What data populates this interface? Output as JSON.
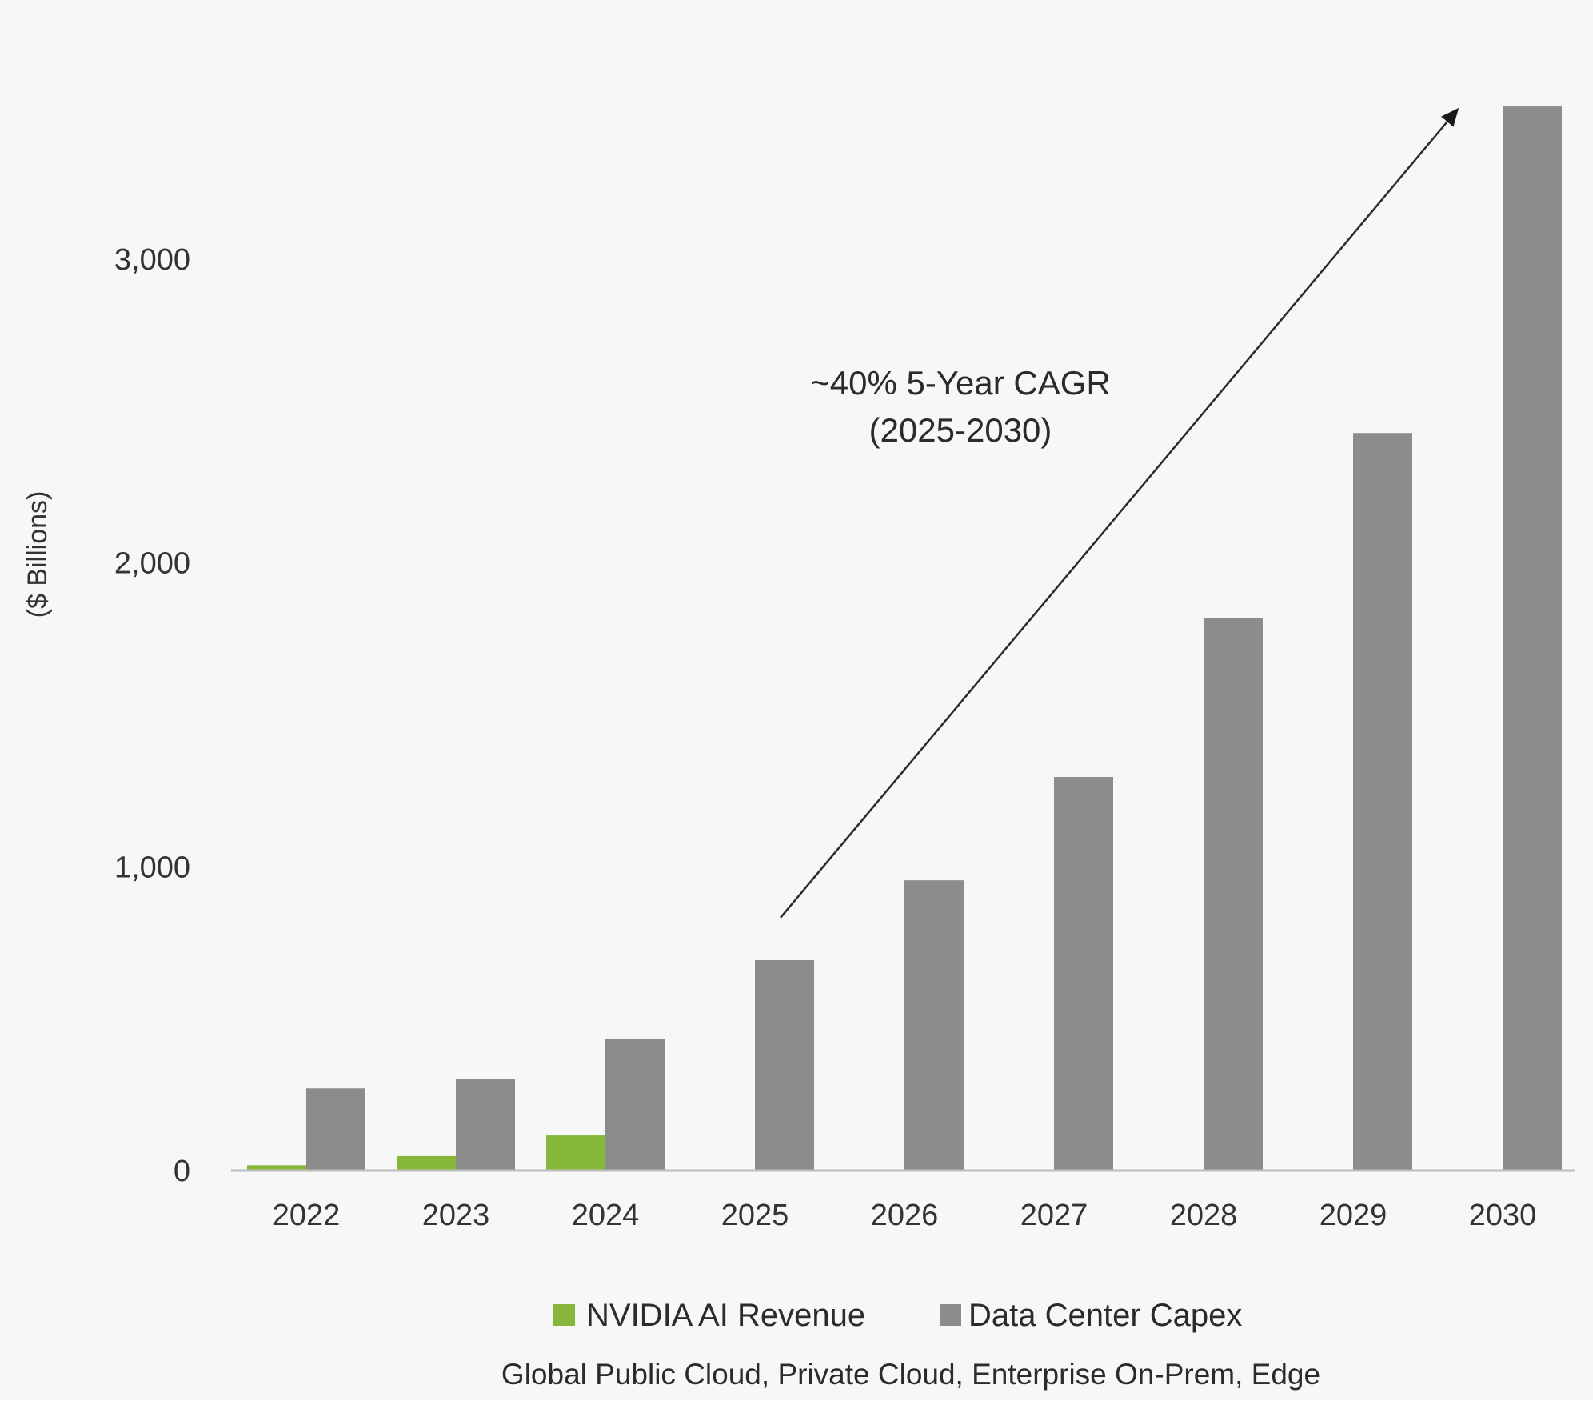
{
  "chart_data": {
    "type": "bar",
    "title": "",
    "xlabel": "",
    "ylabel": "($ Billions)",
    "categories": [
      "2022",
      "2023",
      "2024",
      "2025",
      "2026",
      "2027",
      "2028",
      "2029",
      "2030"
    ],
    "series": [
      {
        "name": "NVIDIA AI Revenue",
        "color": "#86b63a",
        "values": [
          15,
          45,
          113,
          null,
          null,
          null,
          null,
          null,
          null
        ]
      },
      {
        "name": "Data Center Capex",
        "color": "#8c8c8c",
        "values": [
          268,
          300,
          432,
          690,
          953,
          1293,
          1817,
          2425,
          3500
        ]
      }
    ],
    "ylim": [
      0,
      3500
    ],
    "yticks": [
      0,
      1000,
      2000,
      3000
    ],
    "ytick_labels": [
      "0",
      "1,000",
      "2,000",
      "3,000"
    ],
    "grid": false,
    "legend": {
      "placement": "bottom-center",
      "entries": [
        "NVIDIA AI Revenue",
        "Data Center Capex"
      ]
    },
    "annotation": {
      "lines": [
        "~40% 5-Year CAGR",
        "(2025-2030)"
      ],
      "arrow_from": {
        "category": "2025",
        "value": 830
      },
      "arrow_to": {
        "category": "2030",
        "value": 3485
      }
    },
    "subtitle": "Global Public Cloud, Private Cloud, Enterprise On-Prem, Edge"
  },
  "colors": {
    "background": "#f7f7f7",
    "axis": "#bdbdbd",
    "text": "#2b2b2b"
  }
}
